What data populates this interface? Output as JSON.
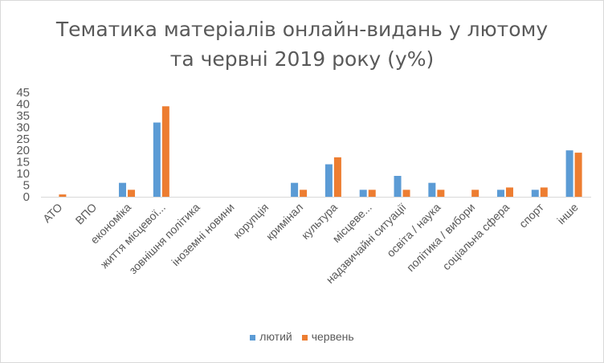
{
  "title_line1": "Тематика матеріалів онлайн-видань у лютому",
  "title_line2": "та червні 2019 року (у%)",
  "chart_data": {
    "type": "bar",
    "title": "Тематика матеріалів онлайн-видань у лютому та червні 2019 року (у%)",
    "categories": [
      "АТО",
      "ВПО",
      "економіка",
      "життя місцевої...",
      "зовнішня політика",
      "іноземні новини",
      "корупція",
      "кримінал",
      "культура",
      "місцеве...",
      "надзвичайні ситуації",
      "освіта / наука",
      "політика / вибори",
      "соціальна сфера",
      "спорт",
      "інше"
    ],
    "series": [
      {
        "name": "лютий",
        "color": "#5b9bd5",
        "values": [
          0,
          0,
          6,
          32,
          0,
          0,
          0,
          6,
          14,
          3,
          9,
          6,
          0,
          3,
          3,
          20
        ]
      },
      {
        "name": "червень",
        "color": "#ed7d31",
        "values": [
          1,
          0,
          3,
          39,
          0,
          0,
          0,
          3,
          17,
          3,
          3,
          3,
          3,
          4,
          4,
          19
        ]
      }
    ],
    "ylim": [
      0,
      45
    ],
    "yticks": [
      0,
      5,
      10,
      15,
      20,
      25,
      30,
      35,
      40,
      45
    ],
    "grid": false,
    "legend_position": "bottom"
  }
}
